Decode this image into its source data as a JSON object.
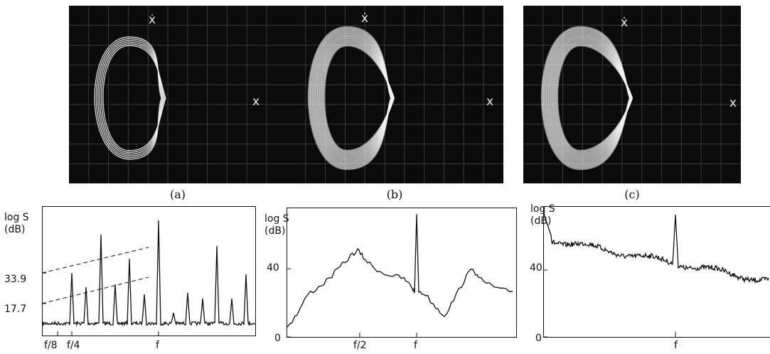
{
  "scopes": [
    {
      "caption": "(a)",
      "ylabel": "ẋ",
      "xlabel": "x"
    },
    {
      "caption": "(b)",
      "ylabel": "ẋ",
      "xlabel": "x"
    },
    {
      "caption": "(c)",
      "ylabel": "ẋ",
      "xlabel": "x"
    }
  ],
  "spectra": {
    "a": {
      "ylabel_line1": "log S",
      "ylabel_line2": "(dB)",
      "ytick_1": "33.9",
      "ytick_2": "17.7",
      "xtick_1": "f/8",
      "xtick_2": "f/4",
      "xtick_3": "f"
    },
    "b": {
      "ylabel_line1": "log S",
      "ylabel_line2": "(dB)",
      "ytick_1": "40",
      "ytick_2": "0",
      "xtick_1": "f/2",
      "xtick_2": "f"
    },
    "c": {
      "ylabel_line1": "log S",
      "ylabel_line2": "(dB)",
      "ytick_1": "40",
      "ytick_2": "0",
      "xtick_1": "f"
    }
  },
  "colors": {
    "screen": "#0b0b0b",
    "trace": "#f2f2f2",
    "grid": "#3a3a3a",
    "ink": "#111111"
  }
}
